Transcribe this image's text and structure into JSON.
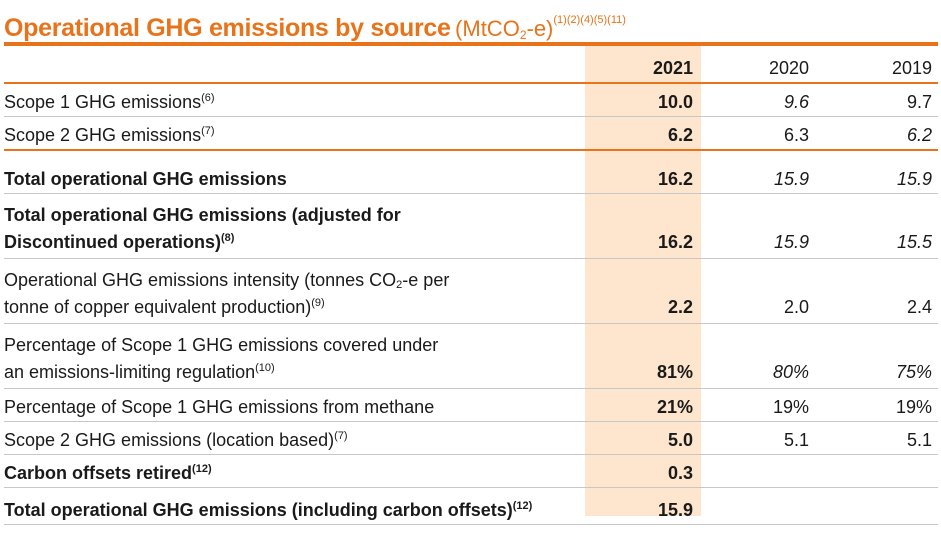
{
  "title": {
    "main": "Operational GHG emissions by source",
    "unit_pre": "(MtCO",
    "unit_sub": "2",
    "unit_post": "-e)",
    "notes": "(1)(2)(4)(5)(11)"
  },
  "columns": [
    "2021",
    "2020",
    "2019"
  ],
  "colors": {
    "accent": "#e8731a",
    "highlight": "#fde6cd"
  },
  "rows": [
    {
      "label": "Scope 1 GHG emissions",
      "note": "(6)",
      "v2021": "10.0",
      "v2020": "9.6",
      "v2019": "9.7"
    },
    {
      "label": "Scope 2 GHG emissions",
      "note": "(7)",
      "v2021": "6.2",
      "v2020": "6.3",
      "v2019": "6.2"
    },
    {
      "label": "Total operational GHG emissions",
      "note": "",
      "v2021": "16.2",
      "v2020": "15.9",
      "v2019": "15.9"
    },
    {
      "label_line1": "Total operational GHG emissions (adjusted for",
      "label_line2": "Discontinued operations)",
      "note": "(8)",
      "v2021": "16.2",
      "v2020": "15.9",
      "v2019": "15.5"
    },
    {
      "label_line1_pre": "Operational GHG emissions intensity (tonnes CO",
      "label_line1_sub": "2",
      "label_line1_post": "-e per",
      "label_line2": "tonne of copper equivalent production)",
      "note": "(9)",
      "v2021": "2.2",
      "v2020": "2.0",
      "v2019": "2.4"
    },
    {
      "label_line1": "Percentage of Scope 1 GHG emissions covered under",
      "label_line2": "an emissions-limiting regulation",
      "note": "(10)",
      "v2021": "81%",
      "v2020": "80%",
      "v2019": "75%"
    },
    {
      "label": "Percentage of Scope 1 GHG emissions from methane",
      "note": "",
      "v2021": "21%",
      "v2020": "19%",
      "v2019": "19%"
    },
    {
      "label": "Scope 2 GHG emissions (location based)",
      "note": "(7)",
      "v2021": "5.0",
      "v2020": "5.1",
      "v2019": "5.1"
    },
    {
      "label": "Carbon offsets retired",
      "note": "(12)",
      "v2021": "0.3",
      "v2020": "",
      "v2019": ""
    },
    {
      "label": "Total operational GHG emissions (including carbon offsets)",
      "note": "(12)",
      "v2021": "15.9",
      "v2020": "",
      "v2019": ""
    }
  ]
}
